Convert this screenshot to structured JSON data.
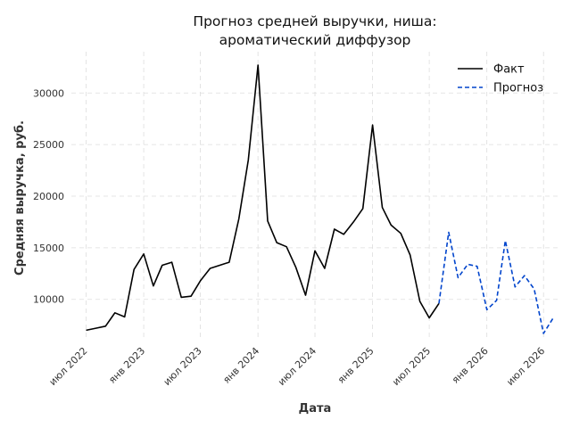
{
  "chart_data": {
    "type": "line",
    "title_lines": [
      "Прогноз средней выручки, ниша:",
      "ароматический диффузор"
    ],
    "xlabel": "Дата",
    "ylabel": "Средняя выручка, руб.",
    "x_ticks": [
      {
        "date": "2022-07-01",
        "label": "июл 2022"
      },
      {
        "date": "2023-01-01",
        "label": "янв 2023"
      },
      {
        "date": "2023-07-01",
        "label": "июл 2023"
      },
      {
        "date": "2024-01-01",
        "label": "янв 2024"
      },
      {
        "date": "2024-07-01",
        "label": "июл 2024"
      },
      {
        "date": "2025-01-01",
        "label": "янв 2025"
      },
      {
        "date": "2025-07-01",
        "label": "июл 2025"
      },
      {
        "date": "2026-01-01",
        "label": "янв 2026"
      },
      {
        "date": "2026-07-01",
        "label": "июл 2026"
      }
    ],
    "y_ticks": [
      10000,
      15000,
      20000,
      25000,
      30000
    ],
    "xlim": [
      "2022-05-15",
      "2026-08-15"
    ],
    "ylim": [
      6000,
      34000
    ],
    "grid": true,
    "legend_position": "top-right",
    "series": [
      {
        "name": "Факт",
        "color": "#000000",
        "dash": "solid",
        "points": [
          [
            "2022-07-01",
            7000
          ],
          [
            "2022-08-01",
            7200
          ],
          [
            "2022-09-01",
            7400
          ],
          [
            "2022-10-01",
            8700
          ],
          [
            "2022-11-01",
            8300
          ],
          [
            "2022-12-01",
            12900
          ],
          [
            "2023-01-01",
            14400
          ],
          [
            "2023-02-01",
            11300
          ],
          [
            "2023-03-01",
            13300
          ],
          [
            "2023-04-01",
            13600
          ],
          [
            "2023-05-01",
            10200
          ],
          [
            "2023-06-01",
            10300
          ],
          [
            "2023-07-01",
            11800
          ],
          [
            "2023-08-01",
            13000
          ],
          [
            "2023-09-01",
            13300
          ],
          [
            "2023-10-01",
            13600
          ],
          [
            "2023-11-01",
            17800
          ],
          [
            "2023-12-01",
            23500
          ],
          [
            "2024-01-01",
            32700
          ],
          [
            "2024-02-01",
            17600
          ],
          [
            "2024-03-01",
            15500
          ],
          [
            "2024-04-01",
            15100
          ],
          [
            "2024-05-01",
            13100
          ],
          [
            "2024-06-01",
            10400
          ],
          [
            "2024-07-01",
            14700
          ],
          [
            "2024-08-01",
            13000
          ],
          [
            "2024-09-01",
            16800
          ],
          [
            "2024-10-01",
            16300
          ],
          [
            "2024-11-01",
            17500
          ],
          [
            "2024-12-01",
            18800
          ],
          [
            "2025-01-01",
            26900
          ],
          [
            "2025-02-01",
            18900
          ],
          [
            "2025-03-01",
            17200
          ],
          [
            "2025-04-01",
            16400
          ],
          [
            "2025-05-01",
            14300
          ],
          [
            "2025-06-01",
            9800
          ],
          [
            "2025-07-01",
            8200
          ],
          [
            "2025-08-01",
            9600
          ]
        ]
      },
      {
        "name": "Прогноз",
        "color": "#0044cc",
        "dash": "dashed",
        "points": [
          [
            "2025-08-01",
            9600
          ],
          [
            "2025-09-01",
            16500
          ],
          [
            "2025-10-01",
            12100
          ],
          [
            "2025-11-01",
            13400
          ],
          [
            "2025-12-01",
            13200
          ],
          [
            "2026-01-01",
            9000
          ],
          [
            "2026-02-01",
            9900
          ],
          [
            "2026-03-01",
            15700
          ],
          [
            "2026-04-01",
            11200
          ],
          [
            "2026-05-01",
            12300
          ],
          [
            "2026-06-01",
            11000
          ],
          [
            "2026-07-01",
            6700
          ],
          [
            "2026-08-01",
            8200
          ]
        ]
      }
    ]
  }
}
